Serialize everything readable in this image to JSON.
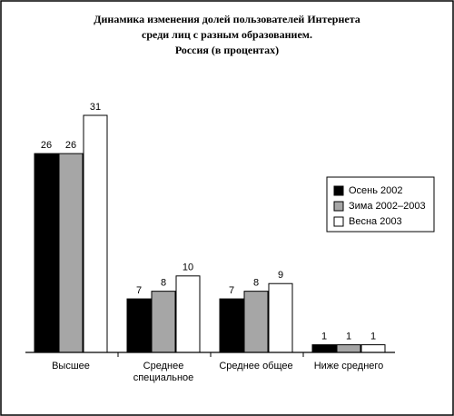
{
  "chart_data": {
    "type": "bar",
    "title": [
      "Динамика изменения долей пользователей Интернета",
      "среди лиц с разным образованием.",
      "Россия (в процентах)"
    ],
    "categories": [
      "Высшее",
      "Среднее специальное",
      "Среднее общее",
      "Ниже среднего"
    ],
    "series": [
      {
        "name": "Осень 2002",
        "color": "#000000",
        "values": [
          26,
          7,
          7,
          1
        ]
      },
      {
        "name": "Зима 2002–2003",
        "color": "#a6a6a6",
        "values": [
          26,
          8,
          8,
          1
        ]
      },
      {
        "name": "Весна 2003",
        "color": "#ffffff",
        "values": [
          31,
          10,
          9,
          1
        ]
      }
    ],
    "legend": "right"
  }
}
